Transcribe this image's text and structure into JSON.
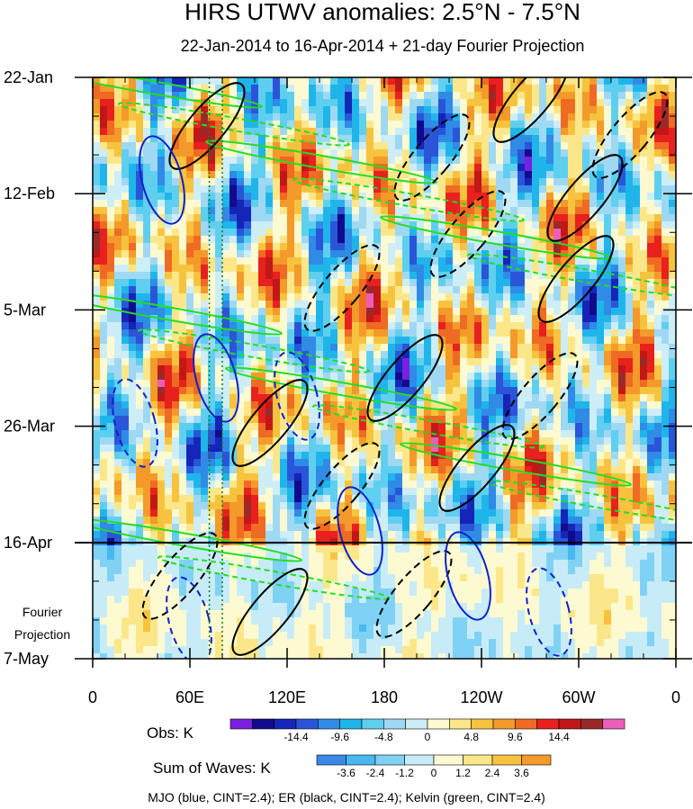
{
  "chart_data": {
    "type": "heatmap",
    "title": "HIRS UTWV anomalies: 2.5°N - 7.5°N",
    "subtitle": "22-Jan-2014 to 16-Apr-2014 + 21-day Fourier Projection",
    "x_tick_labels": [
      "0",
      "60E",
      "120E",
      "180",
      "120W",
      "60W",
      "0"
    ],
    "x_ticks_deg": [
      0,
      60,
      120,
      180,
      240,
      300,
      360
    ],
    "x_range_deg": [
      0,
      360
    ],
    "y_tick_labels": [
      "22-Jan",
      "12-Feb",
      "5-Mar",
      "26-Mar",
      "16-Apr",
      "7-May"
    ],
    "y_range_days": [
      0,
      105
    ],
    "y_ticks_days": [
      0,
      21,
      42,
      63,
      84,
      105
    ],
    "observation_end_day": 84,
    "projection_label_line1": "Fourier",
    "projection_label_line2": "Projection",
    "reference_lines_deg": [
      72,
      80
    ],
    "obs_colorbar": {
      "label": "Obs: K",
      "tick_labels": [
        "-14.4",
        "-9.6",
        "-4.8",
        "0",
        "4.8",
        "9.6",
        "14.4"
      ],
      "colors": [
        "#7b1fe0",
        "#120a8c",
        "#1525b8",
        "#2a55d8",
        "#2f8be6",
        "#1fb5ea",
        "#5fcff0",
        "#9fd8f3",
        "#cdeef7",
        "#fdfad2",
        "#fbe78a",
        "#f7c33e",
        "#f39a2a",
        "#ef6a22",
        "#e8201e",
        "#c01818",
        "#9a2a2a",
        "#ec5fb8"
      ]
    },
    "waves_colorbar": {
      "label": "Sum of Waves: K",
      "tick_labels": [
        "-3.6",
        "-2.4",
        "-1.2",
        "0",
        "1.2",
        "2.4",
        "3.6"
      ],
      "colors": [
        "#3a88e8",
        "#47b8f0",
        "#7fd2f4",
        "#c7ecf8",
        "#fdfad2",
        "#fbe78a",
        "#f7c33e",
        "#f39a2a"
      ]
    },
    "caption": "MJO (blue, CINT=2.4); ER (black, CINT=2.4); Kelvin (green, CINT=2.4)",
    "series": [
      {
        "name": "MJO (blue, CINT=2.4)",
        "color": "#1020cc"
      },
      {
        "name": "ER (black, CINT=2.4)",
        "color": "#000000"
      },
      {
        "name": "Kelvin (green, CINT=2.4)",
        "color": "#22dd22"
      }
    ],
    "grid": false
  }
}
